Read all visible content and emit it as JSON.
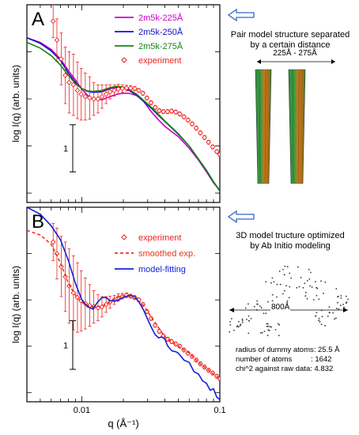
{
  "chart_data": [
    {
      "panel_label": "A",
      "type": "line",
      "x_scale": "log",
      "xlim": [
        0.004,
        0.1
      ],
      "y_units": "log-relative",
      "ylim": [
        -2.2,
        2.0
      ],
      "scale_bar": {
        "label": "1",
        "y_from": -1.55,
        "y_to": -0.55
      },
      "ylabel": "log I(q)  (arb. units)",
      "series": [
        {
          "name": "2m5k-225Å",
          "color": "#cc00cc",
          "style": "solid",
          "points": [
            [
              0.004,
              1.3
            ],
            [
              0.005,
              1.2
            ],
            [
              0.006,
              1.05
            ],
            [
              0.007,
              0.85
            ],
            [
              0.008,
              0.6
            ],
            [
              0.009,
              0.4
            ],
            [
              0.01,
              0.2
            ],
            [
              0.011,
              0.08
            ],
            [
              0.012,
              0.0
            ],
            [
              0.014,
              -0.02
            ],
            [
              0.016,
              0.05
            ],
            [
              0.018,
              0.1
            ],
            [
              0.02,
              0.12
            ],
            [
              0.022,
              0.12
            ],
            [
              0.025,
              0.07
            ],
            [
              0.028,
              -0.05
            ],
            [
              0.032,
              -0.28
            ],
            [
              0.036,
              -0.45
            ],
            [
              0.04,
              -0.58
            ],
            [
              0.045,
              -0.7
            ],
            [
              0.05,
              -0.8
            ],
            [
              0.06,
              -1.05
            ],
            [
              0.07,
              -1.3
            ],
            [
              0.08,
              -1.55
            ],
            [
              0.09,
              -1.78
            ],
            [
              0.1,
              -1.95
            ]
          ]
        },
        {
          "name": "2m5k-250Å",
          "color": "#1010cc",
          "style": "solid",
          "points": [
            [
              0.004,
              1.3
            ],
            [
              0.005,
              1.18
            ],
            [
              0.006,
              1.02
            ],
            [
              0.007,
              0.82
            ],
            [
              0.008,
              0.55
            ],
            [
              0.009,
              0.35
            ],
            [
              0.01,
              0.22
            ],
            [
              0.011,
              0.16
            ],
            [
              0.012,
              0.14
            ],
            [
              0.014,
              0.15
            ],
            [
              0.016,
              0.22
            ],
            [
              0.018,
              0.25
            ],
            [
              0.02,
              0.23
            ],
            [
              0.022,
              0.18
            ],
            [
              0.025,
              0.08
            ],
            [
              0.028,
              -0.05
            ],
            [
              0.032,
              -0.2
            ],
            [
              0.036,
              -0.35
            ],
            [
              0.04,
              -0.48
            ],
            [
              0.045,
              -0.62
            ],
            [
              0.05,
              -0.75
            ],
            [
              0.06,
              -1.0
            ],
            [
              0.07,
              -1.28
            ],
            [
              0.08,
              -1.52
            ],
            [
              0.09,
              -1.76
            ],
            [
              0.1,
              -1.95
            ]
          ]
        },
        {
          "name": "2m5k-275Å",
          "color": "#118811",
          "style": "solid",
          "points": [
            [
              0.004,
              1.2
            ],
            [
              0.005,
              1.08
            ],
            [
              0.006,
              0.92
            ],
            [
              0.007,
              0.72
            ],
            [
              0.008,
              0.5
            ],
            [
              0.009,
              0.32
            ],
            [
              0.01,
              0.22
            ],
            [
              0.011,
              0.17
            ],
            [
              0.012,
              0.16
            ],
            [
              0.014,
              0.18
            ],
            [
              0.016,
              0.24
            ],
            [
              0.018,
              0.27
            ],
            [
              0.02,
              0.25
            ],
            [
              0.022,
              0.2
            ],
            [
              0.025,
              0.1
            ],
            [
              0.028,
              -0.03
            ],
            [
              0.032,
              -0.18
            ],
            [
              0.036,
              -0.33
            ],
            [
              0.04,
              -0.47
            ],
            [
              0.045,
              -0.61
            ],
            [
              0.05,
              -0.74
            ],
            [
              0.06,
              -1.0
            ],
            [
              0.07,
              -1.28
            ],
            [
              0.08,
              -1.52
            ],
            [
              0.09,
              -1.76
            ],
            [
              0.1,
              -1.96
            ]
          ]
        },
        {
          "name": "experiment",
          "color": "#ee2222",
          "style": "markers",
          "points": [
            [
              0.0062,
              1.65
            ],
            [
              0.0066,
              1.25
            ],
            [
              0.0071,
              0.85
            ],
            [
              0.0076,
              0.5
            ],
            [
              0.0081,
              0.35
            ],
            [
              0.0087,
              0.3
            ],
            [
              0.0093,
              0.18
            ],
            [
              0.0099,
              0.1
            ],
            [
              0.0106,
              0.05
            ],
            [
              0.0114,
              0.02
            ],
            [
              0.0122,
              0.0
            ],
            [
              0.0131,
              0.0
            ],
            [
              0.014,
              0.05
            ],
            [
              0.015,
              0.1
            ],
            [
              0.016,
              0.15
            ],
            [
              0.0172,
              0.18
            ],
            [
              0.0184,
              0.21
            ],
            [
              0.0197,
              0.22
            ],
            [
              0.0211,
              0.23
            ],
            [
              0.0226,
              0.23
            ],
            [
              0.0242,
              0.22
            ],
            [
              0.0259,
              0.18
            ],
            [
              0.0277,
              0.12
            ],
            [
              0.0296,
              0.02
            ],
            [
              0.0317,
              -0.08
            ],
            [
              0.034,
              -0.18
            ],
            [
              0.0364,
              -0.25
            ],
            [
              0.039,
              -0.27
            ],
            [
              0.0418,
              -0.27
            ],
            [
              0.0447,
              -0.26
            ],
            [
              0.0479,
              -0.28
            ],
            [
              0.0513,
              -0.32
            ],
            [
              0.0549,
              -0.38
            ],
            [
              0.0588,
              -0.45
            ],
            [
              0.063,
              -0.53
            ],
            [
              0.0675,
              -0.62
            ],
            [
              0.0723,
              -0.72
            ],
            [
              0.0774,
              -0.82
            ],
            [
              0.0829,
              -0.92
            ],
            [
              0.0888,
              -1.02
            ],
            [
              0.0951,
              -1.12
            ],
            [
              0.1,
              -1.18
            ]
          ],
          "errors": [
            0.35,
            0.45,
            0.55,
            0.6,
            0.65,
            0.65,
            0.6,
            0.55,
            0.5,
            0.45,
            0.35,
            0.3,
            0.25,
            0.2,
            0.15,
            0.12,
            0.1,
            0.08,
            0.06,
            0.05,
            0.04,
            0.04,
            0.04,
            0.04,
            0.04,
            0.04,
            0.04,
            0.04,
            0.04,
            0.04,
            0.04,
            0.04,
            0.04,
            0.04,
            0.04,
            0.04,
            0.04,
            0.04,
            0.04,
            0.04,
            0.04,
            0.04
          ]
        }
      ]
    },
    {
      "panel_label": "B",
      "type": "line",
      "x_scale": "log",
      "xlim": [
        0.004,
        0.1
      ],
      "xticks": [
        0.01,
        0.1
      ],
      "xtick_labels": [
        "0.01",
        "0.1"
      ],
      "y_units": "log-relative",
      "ylim": [
        -2.2,
        2.0
      ],
      "scale_bar": {
        "label": "1",
        "y_from": -1.5,
        "y_to": -0.45
      },
      "xlabel": "q  (Å⁻¹)",
      "ylabel": "log I(q)  (arb. units)",
      "series": [
        {
          "name": "experiment",
          "color": "#ee2222",
          "style": "markers",
          "points": [
            [
              0.0062,
              1.25
            ],
            [
              0.0066,
              1.0
            ],
            [
              0.0071,
              0.72
            ],
            [
              0.0076,
              0.5
            ],
            [
              0.0081,
              0.3
            ],
            [
              0.0087,
              0.15
            ],
            [
              0.0093,
              0.05
            ],
            [
              0.0099,
              -0.02
            ],
            [
              0.0106,
              -0.08
            ],
            [
              0.0114,
              -0.12
            ],
            [
              0.0122,
              -0.15
            ],
            [
              0.0131,
              -0.17
            ],
            [
              0.014,
              -0.15
            ],
            [
              0.015,
              -0.1
            ],
            [
              0.016,
              -0.05
            ],
            [
              0.0172,
              0.0
            ],
            [
              0.0184,
              0.05
            ],
            [
              0.0197,
              0.08
            ],
            [
              0.0211,
              0.1
            ],
            [
              0.0226,
              0.08
            ],
            [
              0.0242,
              0.05
            ],
            [
              0.0259,
              0.0
            ],
            [
              0.0277,
              -0.1
            ],
            [
              0.0296,
              -0.25
            ],
            [
              0.0317,
              -0.4
            ],
            [
              0.034,
              -0.55
            ],
            [
              0.0364,
              -0.68
            ],
            [
              0.039,
              -0.78
            ],
            [
              0.0418,
              -0.85
            ],
            [
              0.0447,
              -0.9
            ],
            [
              0.0479,
              -0.95
            ],
            [
              0.0513,
              -1.0
            ],
            [
              0.0549,
              -1.08
            ],
            [
              0.0588,
              -1.15
            ],
            [
              0.063,
              -1.22
            ],
            [
              0.0675,
              -1.3
            ],
            [
              0.0723,
              -1.38
            ],
            [
              0.0774,
              -1.45
            ],
            [
              0.0829,
              -1.52
            ],
            [
              0.0888,
              -1.58
            ],
            [
              0.0951,
              -1.65
            ],
            [
              0.1,
              -1.7
            ]
          ],
          "errors": [
            0.4,
            0.55,
            0.65,
            0.75,
            0.8,
            0.8,
            0.75,
            0.65,
            0.55,
            0.45,
            0.35,
            0.28,
            0.22,
            0.17,
            0.13,
            0.1,
            0.08,
            0.06,
            0.05,
            0.04,
            0.04,
            0.04,
            0.04,
            0.04,
            0.04,
            0.04,
            0.04,
            0.04,
            0.04,
            0.04,
            0.04,
            0.04,
            0.04,
            0.04,
            0.04,
            0.04,
            0.04,
            0.04,
            0.04,
            0.04,
            0.04,
            0.04
          ]
        },
        {
          "name": "smoothed exp.",
          "color": "#ee3311",
          "style": "dashed",
          "points": [
            [
              0.004,
              1.5
            ],
            [
              0.005,
              1.4
            ],
            [
              0.006,
              1.2
            ],
            [
              0.007,
              0.8
            ],
            [
              0.008,
              0.35
            ],
            [
              0.009,
              0.1
            ],
            [
              0.01,
              -0.05
            ],
            [
              0.011,
              -0.12
            ],
            [
              0.012,
              -0.15
            ],
            [
              0.014,
              -0.14
            ],
            [
              0.016,
              -0.05
            ],
            [
              0.018,
              0.05
            ],
            [
              0.02,
              0.09
            ],
            [
              0.022,
              0.07
            ],
            [
              0.025,
              0.0
            ],
            [
              0.028,
              -0.12
            ],
            [
              0.03,
              -0.25
            ],
            [
              0.032,
              -0.38
            ],
            [
              0.036,
              -0.6
            ],
            [
              0.04,
              -0.8
            ],
            [
              0.045,
              -0.92
            ],
            [
              0.05,
              -1.0
            ],
            [
              0.06,
              -1.15
            ],
            [
              0.07,
              -1.35
            ],
            [
              0.08,
              -1.48
            ],
            [
              0.09,
              -1.6
            ],
            [
              0.1,
              -1.7
            ]
          ]
        },
        {
          "name": "model-fitting",
          "color": "#1122dd",
          "style": "solid",
          "points": [
            [
              0.004,
              2.0
            ],
            [
              0.005,
              1.85
            ],
            [
              0.006,
              1.6
            ],
            [
              0.007,
              1.3
            ],
            [
              0.008,
              0.85
            ],
            [
              0.009,
              0.35
            ],
            [
              0.01,
              0.0
            ],
            [
              0.011,
              -0.15
            ],
            [
              0.012,
              -0.2
            ],
            [
              0.013,
              -0.05
            ],
            [
              0.014,
              0.05
            ],
            [
              0.015,
              0.05
            ],
            [
              0.016,
              -0.02
            ],
            [
              0.018,
              -0.02
            ],
            [
              0.02,
              0.05
            ],
            [
              0.022,
              0.1
            ],
            [
              0.024,
              0.08
            ],
            [
              0.026,
              -0.05
            ],
            [
              0.028,
              -0.22
            ],
            [
              0.03,
              -0.42
            ],
            [
              0.032,
              -0.6
            ],
            [
              0.034,
              -0.75
            ],
            [
              0.036,
              -0.82
            ],
            [
              0.038,
              -0.8
            ],
            [
              0.04,
              -0.85
            ],
            [
              0.042,
              -1.0
            ],
            [
              0.045,
              -1.1
            ],
            [
              0.048,
              -1.12
            ],
            [
              0.05,
              -1.15
            ],
            [
              0.055,
              -1.3
            ],
            [
              0.06,
              -1.35
            ],
            [
              0.065,
              -1.55
            ],
            [
              0.07,
              -1.6
            ],
            [
              0.075,
              -1.75
            ],
            [
              0.08,
              -1.8
            ],
            [
              0.085,
              -1.95
            ],
            [
              0.09,
              -1.92
            ],
            [
              0.095,
              -2.1
            ],
            [
              0.1,
              -2.15
            ]
          ]
        }
      ]
    }
  ],
  "panel_a_note": {
    "line1": "Pair model structure separated",
    "line2": "by a certain distance",
    "distance_label": "225Å - 275Å"
  },
  "panel_b_note": {
    "line1": "3D model tructure optimized",
    "line2": "by Ab Initio modeling",
    "width_label": "800Å",
    "stats": {
      "radius": "radius of dummy atoms: 25.5 Å",
      "atoms": "number of atoms         : 1642",
      "chi": "chi^2 against raw data: 4.832"
    }
  },
  "colors": {
    "arrow_outline": "#3366cc",
    "cylinder_green": "#2f8f3a",
    "cylinder_orange": "#c77a1a"
  }
}
